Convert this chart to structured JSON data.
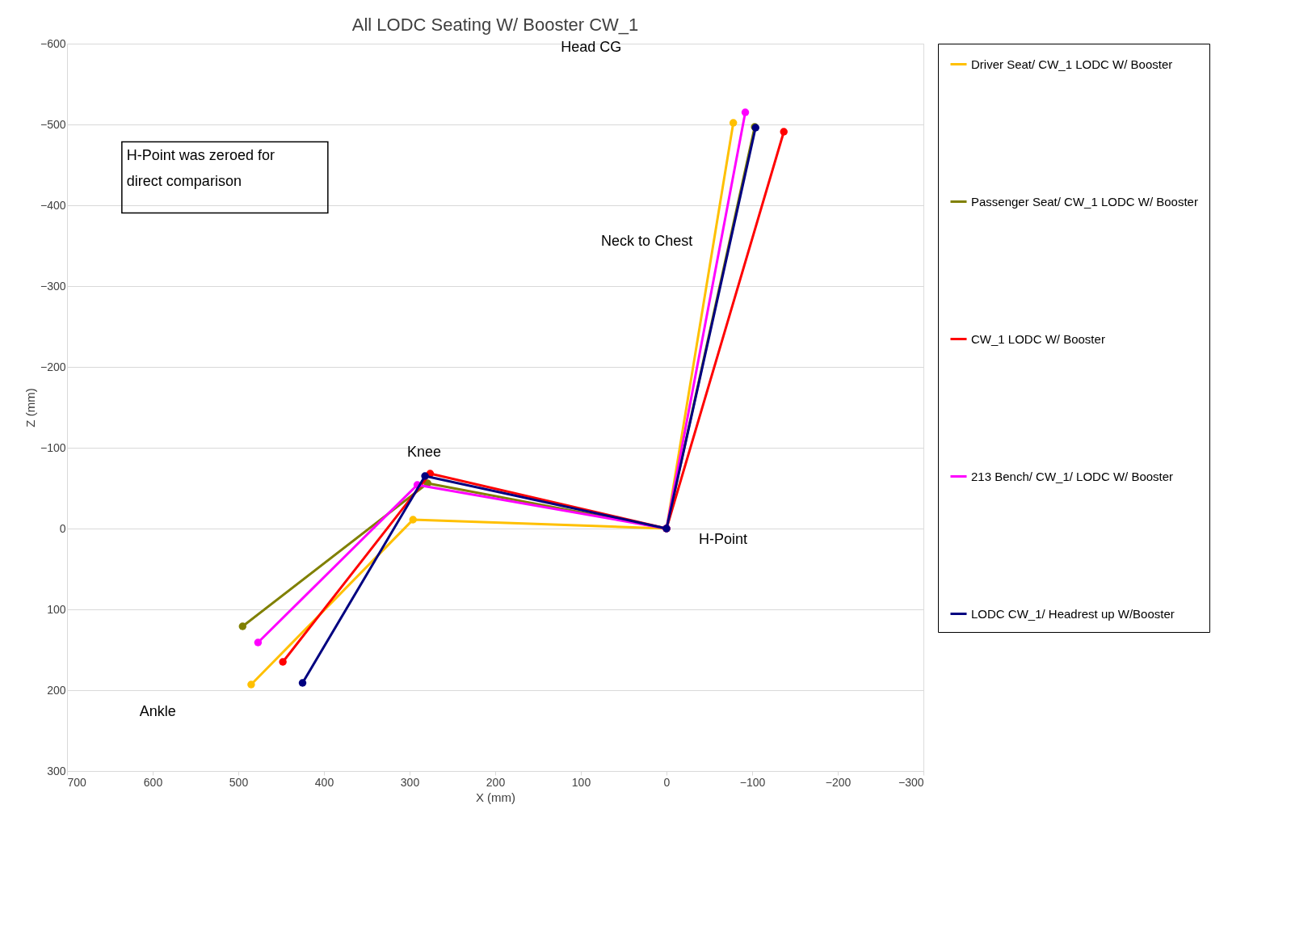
{
  "chart_data": {
    "type": "line",
    "title": "All LODC Seating W/ Booster CW_1",
    "xlabel": "X (mm)",
    "ylabel": "Z (mm)",
    "series": [
      {
        "name": "Driver Seat/ CW_1 LODC W/ Booster",
        "color": "#ffc000",
        "x": [
          485,
          296,
          0,
          -78
        ],
        "values": [
          193,
          -11,
          0,
          -502
        ]
      },
      {
        "name": "Passenger Seat/ CW_1 LODC W/ Booster",
        "color": "#808000",
        "x": [
          495,
          279,
          0,
          -103
        ],
        "values": [
          121,
          -56,
          0,
          -497
        ]
      },
      {
        "name": "CW_1 LODC W/ Booster",
        "color": "#ff0000",
        "x": [
          448,
          276,
          0,
          -137
        ],
        "values": [
          165,
          -68,
          0,
          -491
        ]
      },
      {
        "name": "213 Bench/ CW_1/ LODC W/ Booster",
        "color": "#ff00ff",
        "x": [
          477,
          291,
          0,
          -92
        ],
        "values": [
          141,
          -54,
          0,
          -515
        ]
      },
      {
        "name": "LODC CW_1/ Headrest up W/Booster",
        "color": "#000080",
        "x": [
          425,
          282,
          0,
          -104
        ],
        "values": [
          191,
          -65,
          0,
          -496
        ]
      }
    ],
    "xlim": [
      700,
      -300
    ],
    "xticks": [
      700,
      600,
      500,
      400,
      300,
      200,
      100,
      0,
      -100,
      -200,
      -300
    ],
    "ylim": [
      300,
      -600
    ],
    "yticks": [
      -600,
      -500,
      -400,
      -300,
      -200,
      -100,
      0,
      100,
      200,
      300
    ],
    "grid": "y",
    "legend": "right",
    "marker": "circle",
    "line_style": "solid",
    "annotations": [
      "Head CG",
      "Neck to Chest",
      "Knee",
      "H-Point",
      "Ankle",
      "H-Point was zeroed for direct comparison"
    ]
  }
}
